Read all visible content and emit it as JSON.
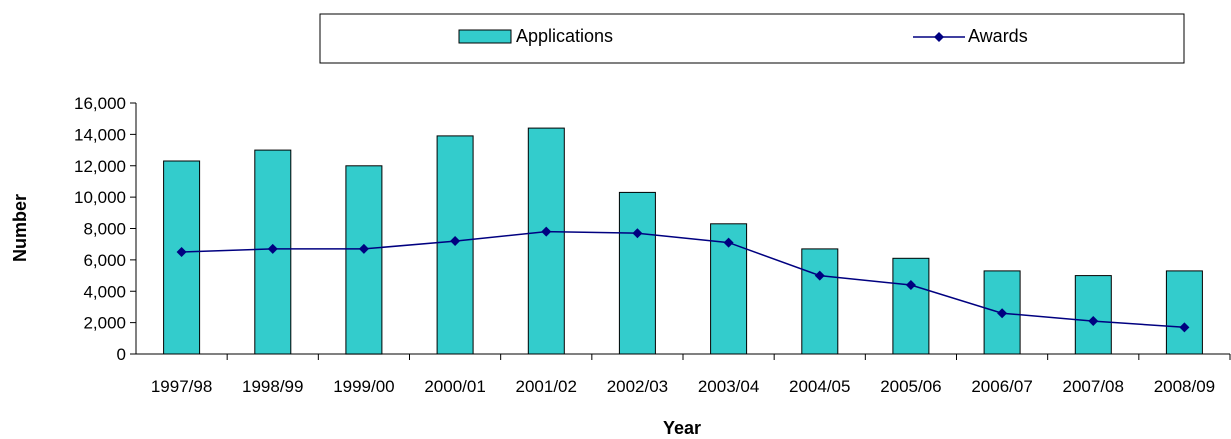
{
  "chart_data": {
    "type": "bar",
    "categories": [
      "1997/98",
      "1998/99",
      "1999/00",
      "2000/01",
      "2001/02",
      "2002/03",
      "2003/04",
      "2004/05",
      "2005/06",
      "2006/07",
      "2007/08",
      "2008/09"
    ],
    "series": [
      {
        "name": "Applications",
        "kind": "bar",
        "color": "#33CCCC",
        "values": [
          12300,
          13000,
          12000,
          13900,
          14400,
          10300,
          8300,
          6700,
          6100,
          5300,
          5000,
          5300
        ]
      },
      {
        "name": "Awards",
        "kind": "line",
        "color": "#000080",
        "values": [
          6500,
          6700,
          6700,
          7200,
          7800,
          7700,
          7100,
          5000,
          4400,
          2600,
          2100,
          1700
        ]
      }
    ],
    "xlabel": "Year",
    "ylabel": "Number",
    "ylim": [
      0,
      16000
    ],
    "yticks": [
      0,
      2000,
      4000,
      6000,
      8000,
      10000,
      12000,
      14000,
      16000
    ],
    "ytick_labels": [
      "0",
      "2,000",
      "4,000",
      "6,000",
      "8,000",
      "10,000",
      "12,000",
      "14,000",
      "16,000"
    ],
    "legend_position": "top",
    "grid": false
  }
}
